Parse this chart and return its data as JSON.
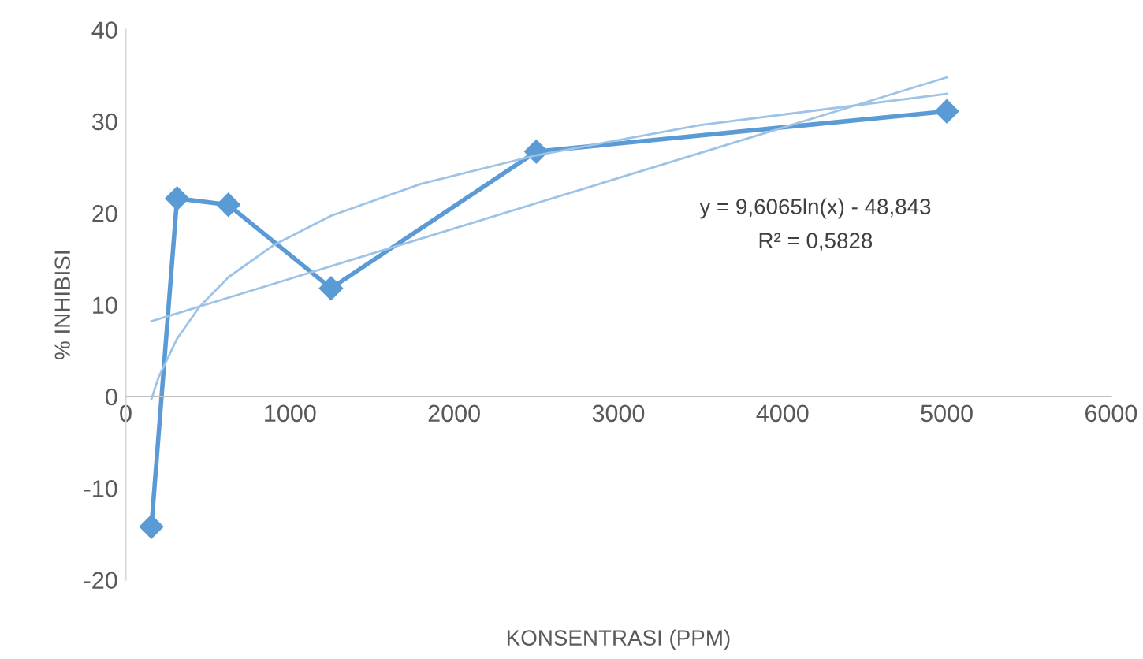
{
  "chart_data": {
    "type": "line",
    "xlabel": "KONSENTRASI (PPM)",
    "ylabel": "% INHIBISI",
    "xlim": [
      0,
      6000
    ],
    "xticks": [
      0,
      1000,
      2000,
      3000,
      4000,
      5000,
      6000
    ],
    "ylim": [
      -20,
      40
    ],
    "yticks": [
      -20,
      -10,
      0,
      10,
      20,
      30,
      40
    ],
    "grid": false,
    "legend": false,
    "series": [
      {
        "color": "#5b9bd5",
        "marker": "diamond",
        "x": [
          156.25,
          312.5,
          625,
          1250,
          2500,
          5000
        ],
        "values": [
          -14.2,
          21.6,
          20.9,
          11.8,
          26.7,
          31.1
        ]
      },
      {
        "color": "#9dc3e6",
        "marker": "none",
        "x": [
          156.25,
          200,
          312.5,
          450,
          625,
          900,
          1250,
          1800,
          2500,
          3500,
          5000
        ],
        "values": [
          -0.3,
          2.1,
          6.3,
          9.8,
          13.0,
          16.5,
          19.7,
          23.2,
          26.3,
          29.6,
          33.0
        ]
      },
      {
        "color": "#9dc3e6",
        "marker": "none",
        "x": [
          156.25,
          5000
        ],
        "values": [
          8.2,
          34.8
        ]
      }
    ],
    "annotations": [
      "y = 9,6065ln(x) - 48,843",
      "R² = 0,5828"
    ]
  }
}
